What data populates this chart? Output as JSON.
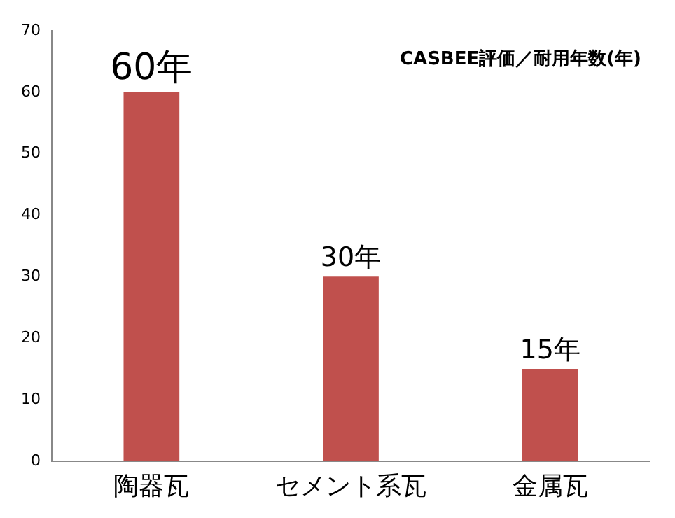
{
  "chart_data": {
    "type": "bar",
    "title": "CASBEE評価／耐用年数(年)",
    "categories": [
      "陶器瓦",
      "セメント系瓦",
      "金属瓦"
    ],
    "values": [
      60,
      30,
      15
    ],
    "value_labels": [
      "60年",
      "30年",
      "15年"
    ],
    "color": "#c0504d",
    "ylim": [
      0,
      70
    ],
    "yticks": [
      0,
      10,
      20,
      30,
      40,
      50,
      60,
      70
    ],
    "grid": false,
    "legend": false
  }
}
